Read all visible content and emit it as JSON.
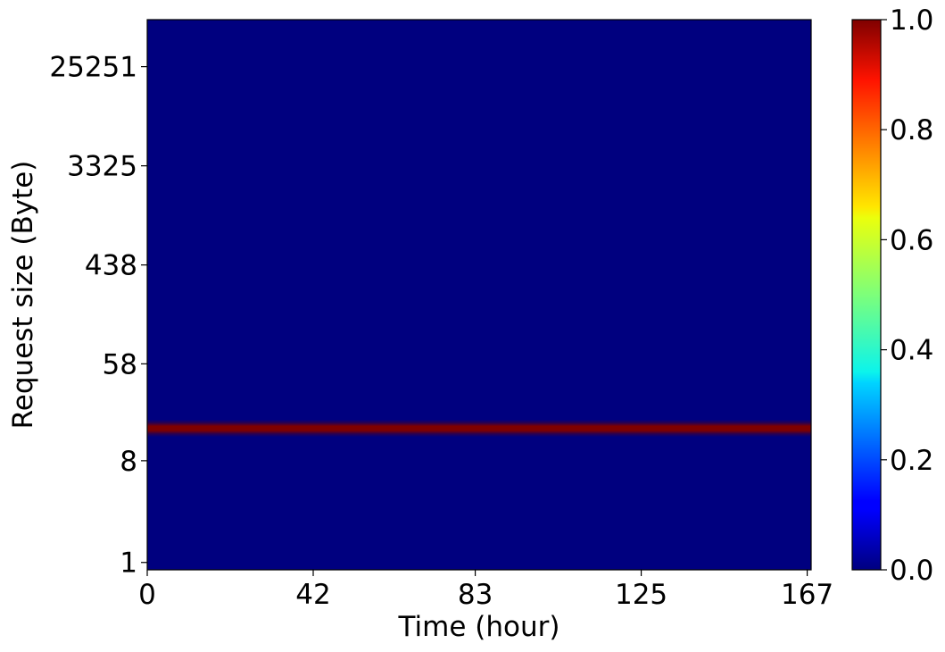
{
  "chart_data": {
    "type": "heatmap",
    "xlabel": "Time (hour)",
    "ylabel": "Request size (Byte)",
    "x_ticks": [
      0,
      42,
      83,
      125,
      167
    ],
    "xlim": [
      0,
      168
    ],
    "y_scale": "log",
    "y_ticks": [
      1,
      8,
      58,
      438,
      3325,
      25251
    ],
    "ylim": [
      0.86,
      66000
    ],
    "colormap": "jet",
    "colorbar": {
      "min": 0.0,
      "max": 1.0,
      "ticks": [
        "0.0",
        "0.2",
        "0.4",
        "0.6",
        "0.8",
        "1.0"
      ]
    },
    "background_value": 0.0,
    "hot_band": {
      "request_size_center": 15.4,
      "request_size_range": [
        13,
        18.5
      ],
      "time_range": [
        0,
        168
      ],
      "peak_value": 1.0
    },
    "grid": false
  }
}
